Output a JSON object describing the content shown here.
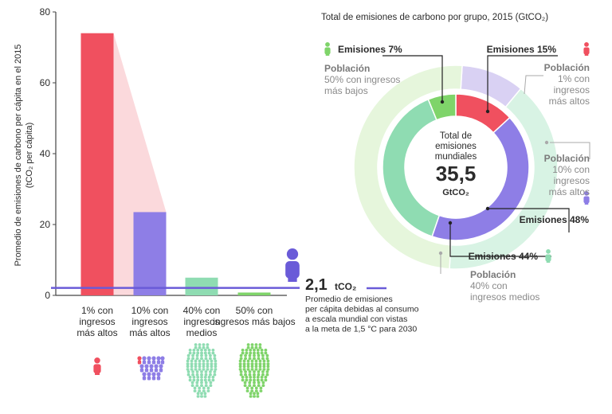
{
  "colors": {
    "rich": "#f0505f",
    "richLight": "#f7b9bf",
    "upper": "#8e7ee6",
    "upperLight": "#d9d1f3",
    "middle": "#8fdcb2",
    "middleLight": "#d8f3e4",
    "lower": "#7fd46a",
    "lowerLight": "#e6f6dc",
    "threshold": "#6a5bd8",
    "axis": "#444444",
    "text": "#2b2b2b",
    "gray": "#8a8a8a"
  },
  "chart_data": [
    {
      "type": "bar",
      "ylabel": "Promedio de emisiones de carbono per cápita en el 2015 (tCO₂ per cápita)",
      "ylim": [
        0,
        80
      ],
      "yticks": [
        0,
        20,
        40,
        60,
        80
      ],
      "categories": [
        "1% con ingresos más altos",
        "10% con ingresos más altos",
        "40% con ingresos medios",
        "50% con ingresos más bajos"
      ],
      "category_lines": [
        [
          "1% con",
          "ingresos",
          "más altos"
        ],
        [
          "10% con",
          "ingresos",
          "más altos"
        ],
        [
          "40% con",
          "ingresos",
          "medios"
        ],
        [
          "50% con",
          "ingresos más bajos"
        ]
      ],
      "values": [
        74,
        23.5,
        5,
        0.8
      ],
      "reference_line": {
        "value": 2.1,
        "label_value": "2,1",
        "label_unit": "tCO₂",
        "description_lines": [
          "Promedio de emisiones",
          "per cápita debidas al consumo",
          "a escala mundial con vistas",
          "a la meta de 1,5 °C para 2030"
        ]
      }
    },
    {
      "type": "pie",
      "title": "Total de emisiones de carbono por grupo, 2015 (GtCO₂)",
      "center": {
        "lines": [
          "Total de",
          "emisiones",
          "mundiales"
        ],
        "value": "35,5",
        "unit": "GtCO₂"
      },
      "inner_ring_emisiones": [
        {
          "group": "1% con ingresos más altos",
          "percent": 15,
          "label": "Emisiones 15%"
        },
        {
          "group": "10% con ingresos más altos",
          "percent": 48,
          "label": "Emisiones 48%"
        },
        {
          "group": "40% con ingresos medios",
          "percent": 44,
          "label": "Emisiones 44%"
        },
        {
          "group": "50% con ingresos más bajos",
          "percent": 7,
          "label": "Emisiones 7%"
        }
      ],
      "outer_ring_poblacion": [
        {
          "group": "1% con ingresos más altos",
          "percent": 1,
          "label_lines": [
            "Población",
            "1% con",
            "ingresos",
            "más altos"
          ]
        },
        {
          "group": "10% con ingresos más altos",
          "percent": 10,
          "label_lines": [
            "Población",
            "10% con",
            "ingresos",
            "más altos"
          ]
        },
        {
          "group": "40% con ingresos medios",
          "percent": 40,
          "label_lines": [
            "Población",
            "40% con",
            "ingresos medios"
          ]
        },
        {
          "group": "50% con ingresos más bajos",
          "percent": 50,
          "label_lines": [
            "Población",
            "50% con ingresos",
            "más bajos"
          ]
        }
      ]
    }
  ],
  "icons": [
    "person-icon",
    "people-group-icon"
  ]
}
